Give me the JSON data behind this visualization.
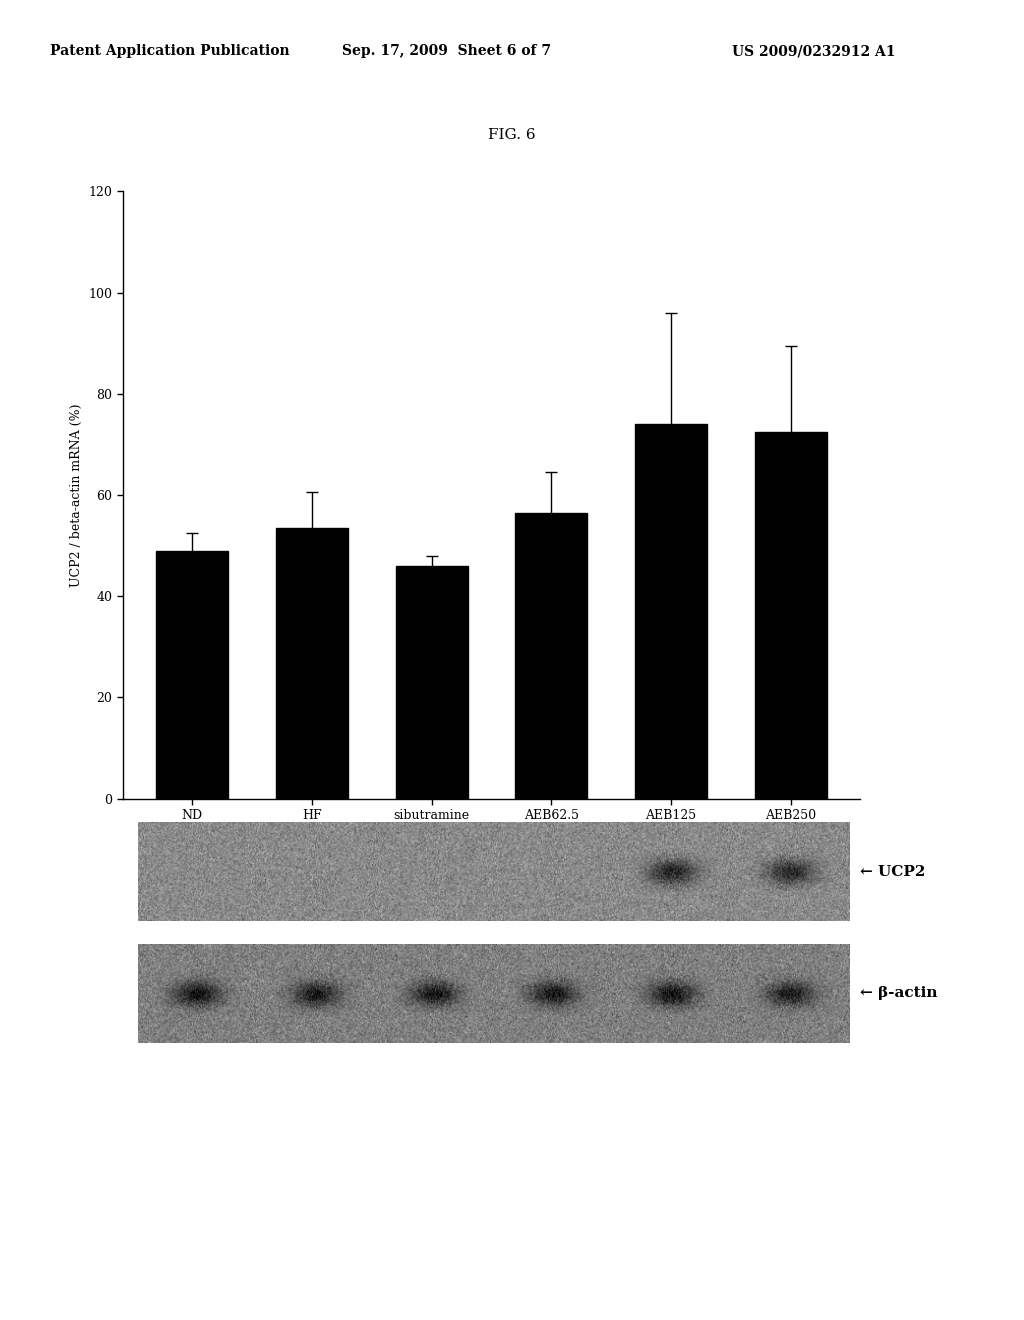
{
  "header_left": "Patent Application Publication",
  "header_mid": "Sep. 17, 2009  Sheet 6 of 7",
  "header_right": "US 2009/0232912 A1",
  "fig_label": "FIG. 6",
  "categories": [
    "ND",
    "HF",
    "sibutramine",
    "AEB62.5",
    "AEB125",
    "AEB250"
  ],
  "values": [
    49.0,
    53.5,
    46.0,
    56.5,
    74.0,
    72.5
  ],
  "errors": [
    3.5,
    7.0,
    2.0,
    8.0,
    22.0,
    17.0
  ],
  "bar_color": "#000000",
  "ylabel": "UCP2 / beta-actin mRNA (%)",
  "ylim": [
    0,
    120
  ],
  "yticks": [
    0,
    20,
    40,
    60,
    80,
    100,
    120
  ],
  "bar_width": 0.6,
  "gel_label_ucp2": "← UCP2",
  "gel_label_bactin": "← β-actin",
  "background_color": "#ffffff",
  "header_fontsize": 10,
  "title_fontsize": 11,
  "axis_fontsize": 9,
  "tick_fontsize": 9,
  "ucp2_band_intensities": [
    0.0,
    0.0,
    0.0,
    0.0,
    0.75,
    0.7
  ],
  "bactin_band_intensities": [
    0.8,
    0.75,
    0.75,
    0.75,
    0.78,
    0.72
  ]
}
